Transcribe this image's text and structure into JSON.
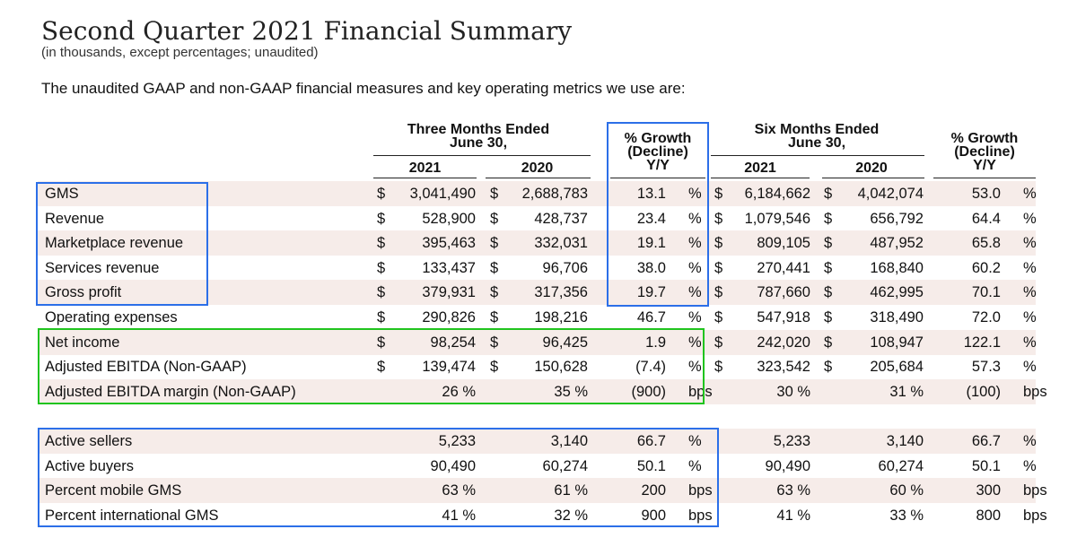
{
  "title": "Second Quarter 2021 Financial Summary",
  "subtitle": "(in thousands, except percentages; unaudited)",
  "intro": "The unaudited GAAP and non-GAAP financial measures and key operating metrics we use are:",
  "headers": {
    "three_months": [
      "Three Months Ended",
      "June 30,"
    ],
    "growth_q": [
      "% Growth",
      "(Decline)",
      "Y/Y"
    ],
    "six_months": [
      "Six Months Ended",
      "June 30,"
    ],
    "growth_h": [
      "% Growth",
      "(Decline)",
      "Y/Y"
    ],
    "years": [
      "2021",
      "2020",
      "2021",
      "2020"
    ]
  },
  "rows": [
    {
      "label": "GMS",
      "q21_cur": "$",
      "q21": "3,041,490",
      "q20_cur": "$",
      "q20": "2,688,783",
      "qg": "13.1",
      "qg_unit": "%",
      "h21_cur": "$",
      "h21": "6,184,662",
      "h20_cur": "$",
      "h20": "4,042,074",
      "hg": "53.0",
      "hg_unit": "%"
    },
    {
      "label": "Revenue",
      "q21_cur": "$",
      "q21": "528,900",
      "q20_cur": "$",
      "q20": "428,737",
      "qg": "23.4",
      "qg_unit": "%",
      "h21_cur": "$",
      "h21": "1,079,546",
      "h20_cur": "$",
      "h20": "656,792",
      "hg": "64.4",
      "hg_unit": "%"
    },
    {
      "label": "Marketplace revenue",
      "q21_cur": "$",
      "q21": "395,463",
      "q20_cur": "$",
      "q20": "332,031",
      "qg": "19.1",
      "qg_unit": "%",
      "h21_cur": "$",
      "h21": "809,105",
      "h20_cur": "$",
      "h20": "487,952",
      "hg": "65.8",
      "hg_unit": "%"
    },
    {
      "label": "Services revenue",
      "q21_cur": "$",
      "q21": "133,437",
      "q20_cur": "$",
      "q20": "96,706",
      "qg": "38.0",
      "qg_unit": "%",
      "h21_cur": "$",
      "h21": "270,441",
      "h20_cur": "$",
      "h20": "168,840",
      "hg": "60.2",
      "hg_unit": "%"
    },
    {
      "label": "Gross profit",
      "q21_cur": "$",
      "q21": "379,931",
      "q20_cur": "$",
      "q20": "317,356",
      "qg": "19.7",
      "qg_unit": "%",
      "h21_cur": "$",
      "h21": "787,660",
      "h20_cur": "$",
      "h20": "462,995",
      "hg": "70.1",
      "hg_unit": "%"
    },
    {
      "label": "Operating expenses",
      "q21_cur": "$",
      "q21": "290,826",
      "q20_cur": "$",
      "q20": "198,216",
      "qg": "46.7",
      "qg_unit": "%",
      "h21_cur": "$",
      "h21": "547,918",
      "h20_cur": "$",
      "h20": "318,490",
      "hg": "72.0",
      "hg_unit": "%"
    },
    {
      "label": "Net income",
      "q21_cur": "$",
      "q21": "98,254",
      "q20_cur": "$",
      "q20": "96,425",
      "qg": "1.9",
      "qg_unit": "%",
      "h21_cur": "$",
      "h21": "242,020",
      "h20_cur": "$",
      "h20": "108,947",
      "hg": "122.1",
      "hg_unit": "%"
    },
    {
      "label": "Adjusted EBITDA (Non-GAAP)",
      "q21_cur": "$",
      "q21": "139,474",
      "q20_cur": "$",
      "q20": "150,628",
      "qg": "(7.4)",
      "qg_unit": "%",
      "h21_cur": "$",
      "h21": "323,542",
      "h20_cur": "$",
      "h20": "205,684",
      "hg": "57.3",
      "hg_unit": "%"
    },
    {
      "label": "Adjusted EBITDA margin (Non-GAAP)",
      "q21": "26 %",
      "q20": "35 %",
      "qg": "(900)",
      "qg_unit": "bps",
      "h21": "30 %",
      "h20": "31 %",
      "hg": "(100)",
      "hg_unit": "bps"
    },
    {
      "label": "Active sellers",
      "q21": "5,233",
      "q20": "3,140",
      "qg": "66.7",
      "qg_unit": "%",
      "h21": "5,233",
      "h20": "3,140",
      "hg": "66.7",
      "hg_unit": "%"
    },
    {
      "label": "Active buyers",
      "q21": "90,490",
      "q20": "60,274",
      "qg": "50.1",
      "qg_unit": "%",
      "h21": "90,490",
      "h20": "60,274",
      "hg": "50.1",
      "hg_unit": "%"
    },
    {
      "label": "Percent mobile GMS",
      "q21": "63 %",
      "q20": "61 %",
      "qg": "200",
      "qg_unit": "bps",
      "h21": "63 %",
      "h20": "60 %",
      "hg": "300",
      "hg_unit": "bps"
    },
    {
      "label": "Percent international GMS",
      "q21": "41 %",
      "q20": "32 %",
      "qg": "900",
      "qg_unit": "bps",
      "h21": "41 %",
      "h20": "33 %",
      "hg": "800",
      "hg_unit": "bps"
    }
  ],
  "colors": {
    "shade": "#f6ece9",
    "blue_box": "#2c6fe8",
    "green_box": "#20c41e"
  }
}
